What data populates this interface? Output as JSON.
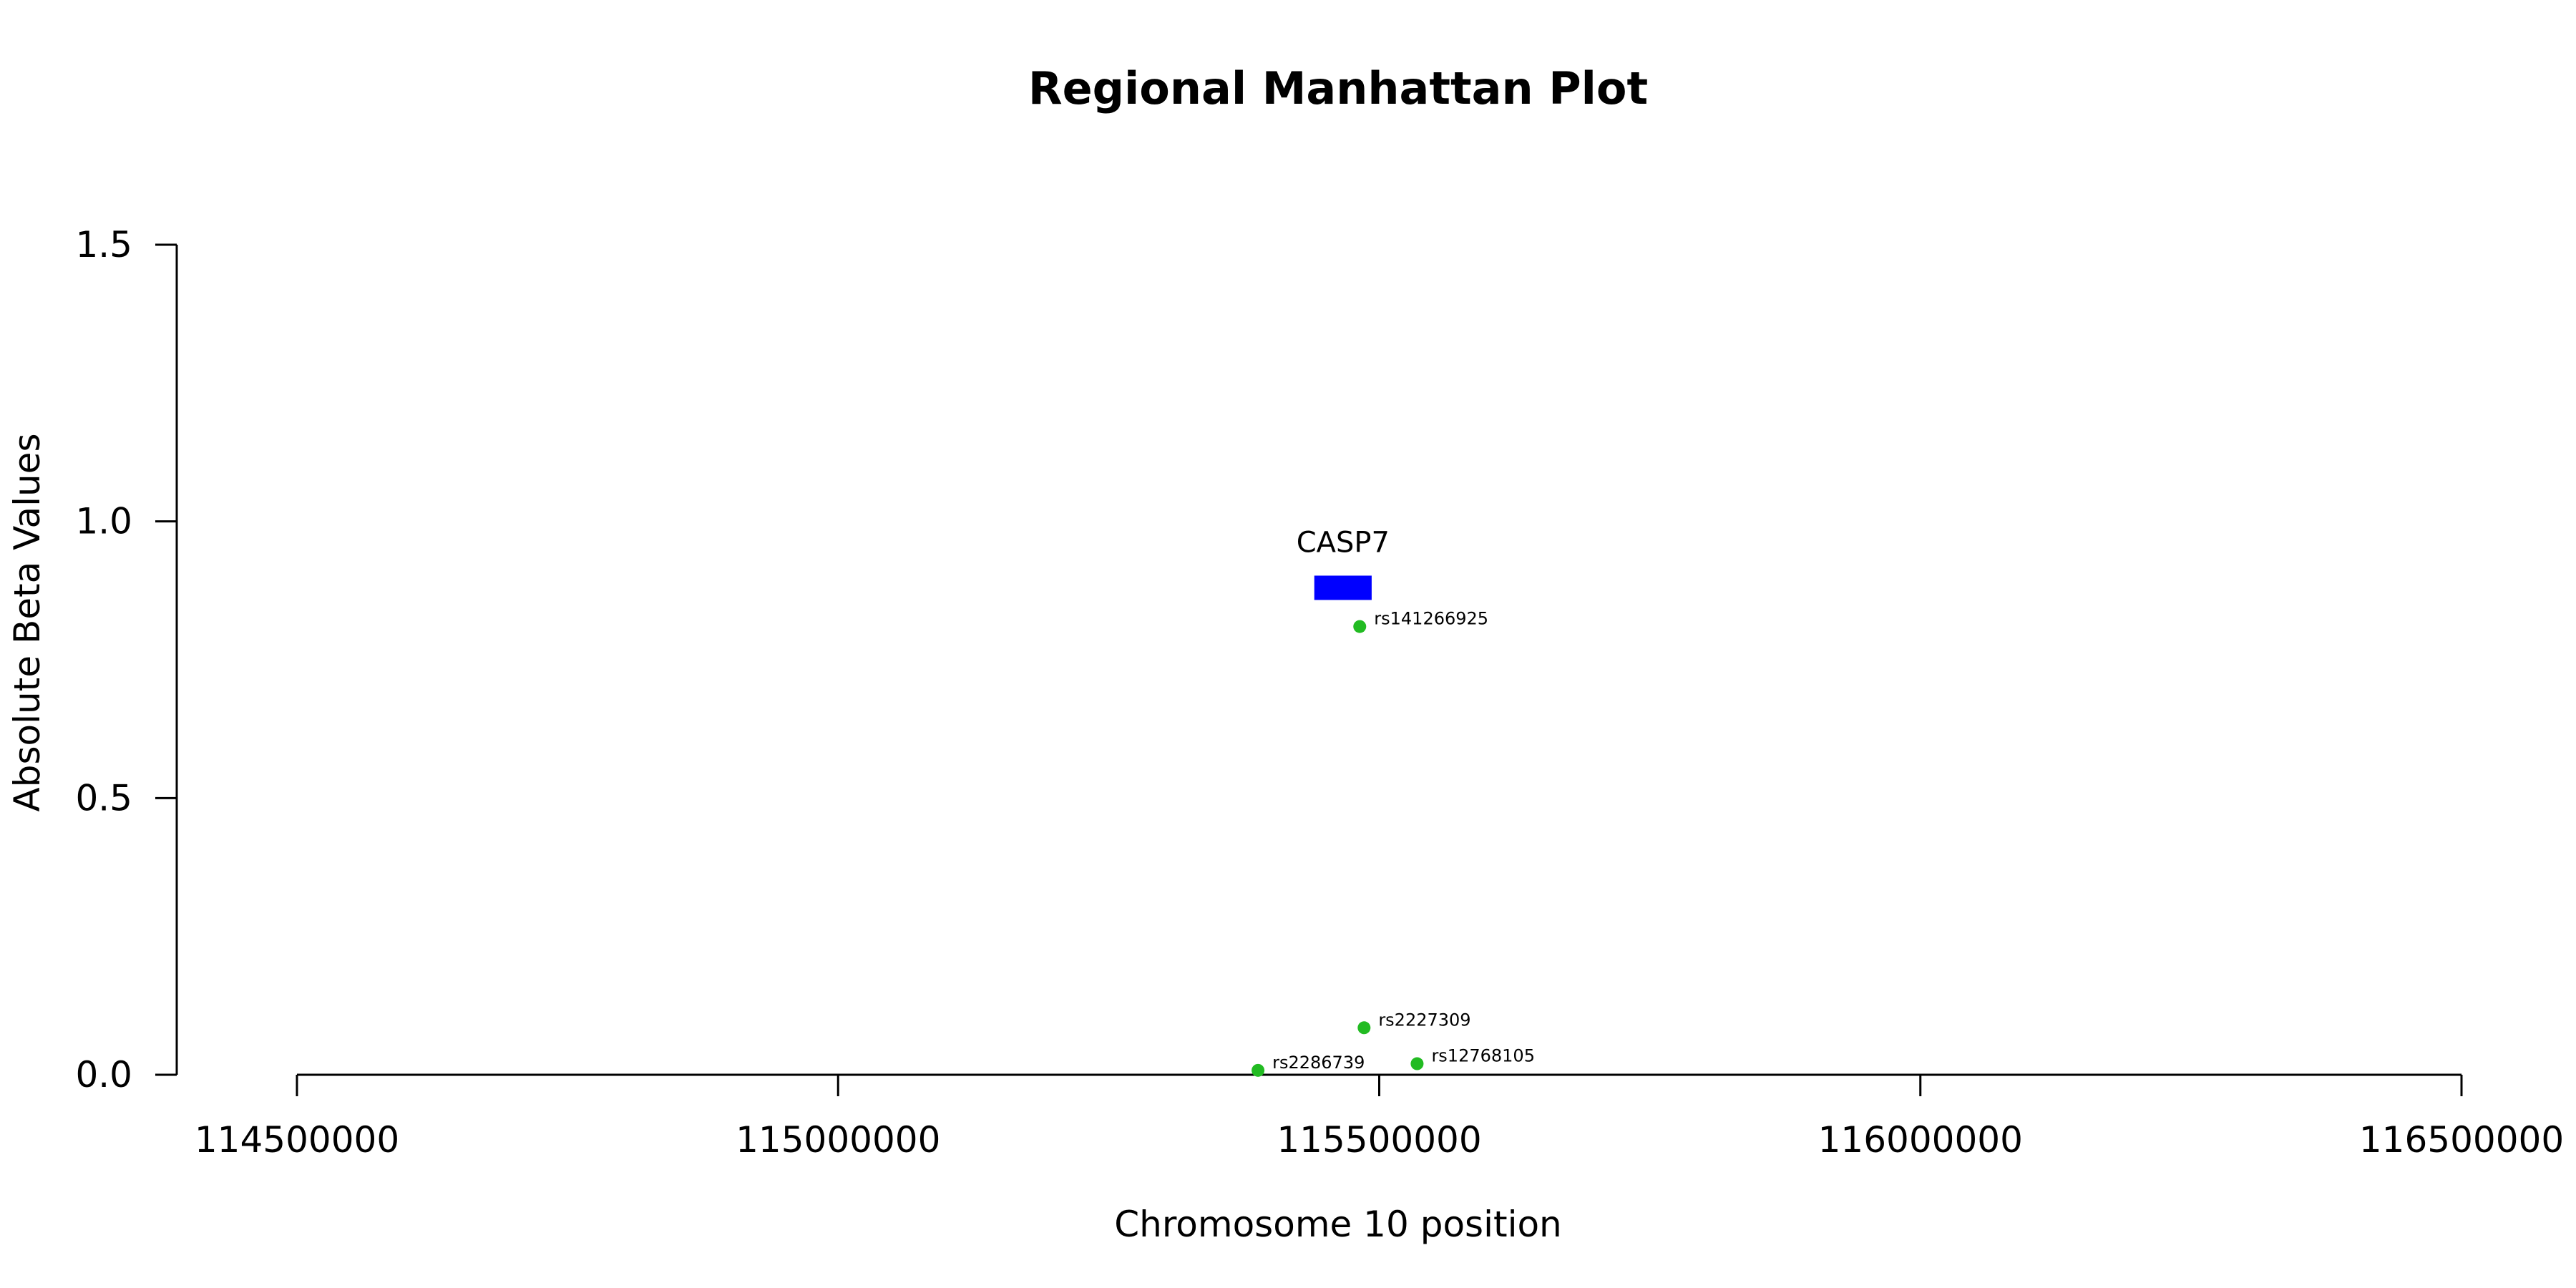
{
  "chart_data": {
    "type": "scatter",
    "title": "Regional Manhattan Plot",
    "xlabel": "Chromosome 10 position",
    "ylabel": "Absolute Beta Values",
    "xlim": [
      114500000,
      116500000
    ],
    "ylim": [
      0,
      1.5
    ],
    "x_ticks": [
      114500000,
      115000000,
      115500000,
      116000000,
      116500000
    ],
    "x_tick_labels": [
      "114500000",
      "115000000",
      "115500000",
      "116000000",
      "116500000"
    ],
    "y_ticks": [
      0,
      0.5,
      1,
      1.5
    ],
    "y_tick_labels": [
      "0.0",
      "0.5",
      "1.0",
      "1.5"
    ],
    "grid": false,
    "point_color": "#22bb22",
    "gene_color": "#0000ff",
    "points": [
      {
        "label": "rs141266925",
        "x": 115482000,
        "y": 0.81
      },
      {
        "label": "rs2227309",
        "x": 115486000,
        "y": 0.085
      },
      {
        "label": "rs12768105",
        "x": 115535000,
        "y": 0.02
      },
      {
        "label": "rs2286739",
        "x": 115388000,
        "y": 0.008
      }
    ],
    "genes": [
      {
        "name": "CASP7",
        "start": 115440000,
        "end": 115493000,
        "y": 0.88
      }
    ]
  }
}
